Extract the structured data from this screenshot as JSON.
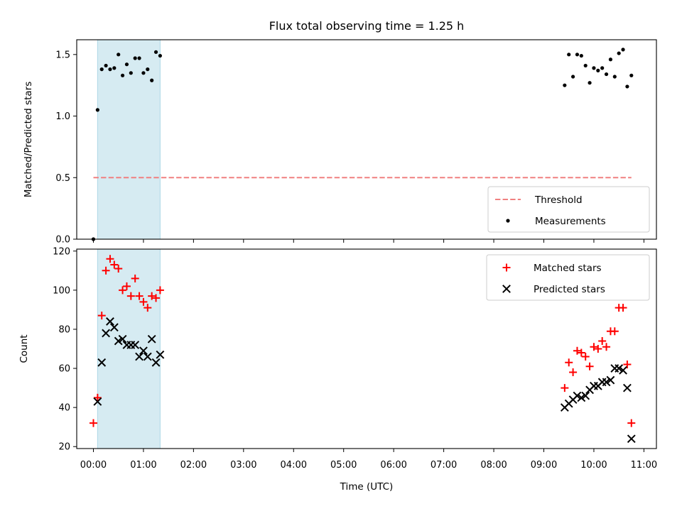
{
  "title": "Flux total observing time = 1.25 h",
  "colors": {
    "threshold": "#f08080",
    "measurements": "#000000",
    "matched": "#ff0000",
    "predicted": "#000000",
    "span": "#add8e6"
  },
  "chart_data": [
    {
      "type": "scatter",
      "xlabel": "",
      "ylabel": "Matched/Predicted stars",
      "xlim": [
        "-00:20",
        "11:15"
      ],
      "ylim": [
        0,
        1.62
      ],
      "yticks": [
        0.0,
        0.5,
        1.0,
        1.5
      ],
      "ytick_labels": [
        "0.0",
        "0.5",
        "1.0",
        "1.5"
      ],
      "shaded_span": [
        "00:05",
        "01:20"
      ],
      "legend_placement": "lower-right",
      "series": [
        {
          "name": "Threshold",
          "kind": "dashed-line",
          "points": [
            [
              "00:00",
              0.5
            ],
            [
              "10:45",
              0.5
            ]
          ]
        },
        {
          "name": "Measurements",
          "kind": "dot",
          "points": [
            [
              "00:00",
              0.0
            ],
            [
              "00:05",
              1.05
            ],
            [
              "00:10",
              1.38
            ],
            [
              "00:15",
              1.41
            ],
            [
              "00:20",
              1.38
            ],
            [
              "00:25",
              1.39
            ],
            [
              "00:30",
              1.5
            ],
            [
              "00:35",
              1.33
            ],
            [
              "00:40",
              1.42
            ],
            [
              "00:45",
              1.35
            ],
            [
              "00:50",
              1.47
            ],
            [
              "00:55",
              1.47
            ],
            [
              "01:00",
              1.35
            ],
            [
              "01:05",
              1.38
            ],
            [
              "01:10",
              1.29
            ],
            [
              "01:15",
              1.52
            ],
            [
              "01:20",
              1.49
            ],
            [
              "09:25",
              1.25
            ],
            [
              "09:30",
              1.5
            ],
            [
              "09:35",
              1.32
            ],
            [
              "09:40",
              1.5
            ],
            [
              "09:45",
              1.49
            ],
            [
              "09:50",
              1.41
            ],
            [
              "09:55",
              1.27
            ],
            [
              "10:00",
              1.39
            ],
            [
              "10:05",
              1.37
            ],
            [
              "10:10",
              1.39
            ],
            [
              "10:15",
              1.34
            ],
            [
              "10:20",
              1.46
            ],
            [
              "10:25",
              1.32
            ],
            [
              "10:30",
              1.51
            ],
            [
              "10:35",
              1.54
            ],
            [
              "10:40",
              1.24
            ],
            [
              "10:45",
              1.33
            ]
          ]
        }
      ]
    },
    {
      "type": "scatter",
      "xlabel": "Time (UTC)",
      "ylabel": "Count",
      "xlim": [
        "-00:20",
        "11:15"
      ],
      "ylim": [
        19,
        121
      ],
      "yticks": [
        20,
        40,
        60,
        80,
        100,
        120
      ],
      "ytick_labels": [
        "20",
        "40",
        "60",
        "80",
        "100",
        "120"
      ],
      "xticks": [
        "00:00",
        "01:00",
        "02:00",
        "03:00",
        "04:00",
        "05:00",
        "06:00",
        "07:00",
        "08:00",
        "09:00",
        "10:00",
        "11:00"
      ],
      "shaded_span": [
        "00:05",
        "01:20"
      ],
      "legend_placement": "upper-right",
      "series": [
        {
          "name": "Matched stars",
          "kind": "plus",
          "points": [
            [
              "00:00",
              32
            ],
            [
              "00:05",
              45
            ],
            [
              "00:10",
              87
            ],
            [
              "00:15",
              110
            ],
            [
              "00:20",
              116
            ],
            [
              "00:25",
              113
            ],
            [
              "00:30",
              111
            ],
            [
              "00:35",
              100
            ],
            [
              "00:40",
              102
            ],
            [
              "00:45",
              97
            ],
            [
              "00:50",
              106
            ],
            [
              "00:55",
              97
            ],
            [
              "01:00",
              94
            ],
            [
              "01:05",
              91
            ],
            [
              "01:10",
              97
            ],
            [
              "01:15",
              96
            ],
            [
              "01:20",
              100
            ],
            [
              "09:25",
              50
            ],
            [
              "09:30",
              63
            ],
            [
              "09:35",
              58
            ],
            [
              "09:40",
              69
            ],
            [
              "09:45",
              68
            ],
            [
              "09:50",
              66
            ],
            [
              "09:55",
              61
            ],
            [
              "10:00",
              71
            ],
            [
              "10:05",
              70
            ],
            [
              "10:10",
              74
            ],
            [
              "10:15",
              71
            ],
            [
              "10:20",
              79
            ],
            [
              "10:25",
              79
            ],
            [
              "10:30",
              91
            ],
            [
              "10:35",
              91
            ],
            [
              "10:40",
              62
            ],
            [
              "10:45",
              32
            ]
          ]
        },
        {
          "name": "Predicted stars",
          "kind": "x",
          "points": [
            [
              "00:05",
              43
            ],
            [
              "00:10",
              63
            ],
            [
              "00:15",
              78
            ],
            [
              "00:20",
              84
            ],
            [
              "00:25",
              81
            ],
            [
              "00:30",
              74
            ],
            [
              "00:35",
              75
            ],
            [
              "00:40",
              72
            ],
            [
              "00:45",
              72
            ],
            [
              "00:50",
              72
            ],
            [
              "00:55",
              66
            ],
            [
              "01:00",
              69
            ],
            [
              "01:05",
              66
            ],
            [
              "01:10",
              75
            ],
            [
              "01:15",
              63
            ],
            [
              "01:20",
              67
            ],
            [
              "09:25",
              40
            ],
            [
              "09:30",
              42
            ],
            [
              "09:35",
              44
            ],
            [
              "09:40",
              46
            ],
            [
              "09:45",
              45
            ],
            [
              "09:50",
              46
            ],
            [
              "09:55",
              49
            ],
            [
              "10:00",
              51
            ],
            [
              "10:05",
              51
            ],
            [
              "10:10",
              53
            ],
            [
              "10:15",
              53
            ],
            [
              "10:20",
              54
            ],
            [
              "10:25",
              60
            ],
            [
              "10:30",
              60
            ],
            [
              "10:35",
              59
            ],
            [
              "10:40",
              50
            ],
            [
              "10:45",
              24
            ]
          ]
        }
      ]
    }
  ]
}
